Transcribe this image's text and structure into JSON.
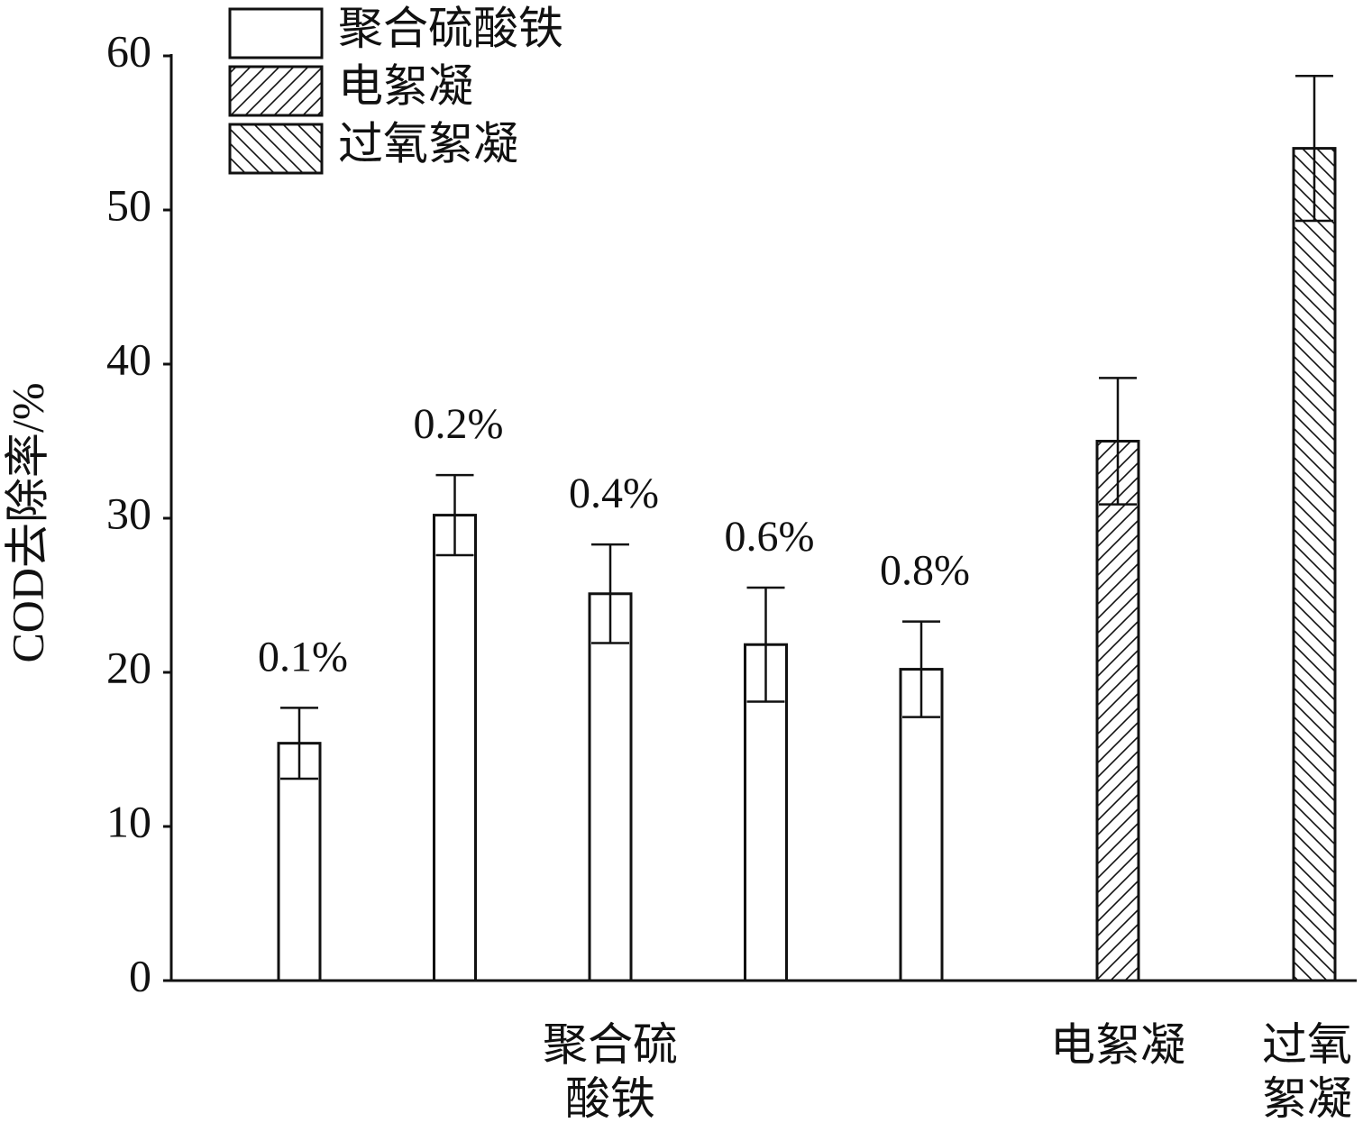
{
  "chart_data": {
    "type": "bar",
    "y_label": "COD去除率/%",
    "categories": [
      "0.1%",
      "0.2%",
      "0.4%",
      "0.6%",
      "0.8%",
      null,
      null
    ],
    "series": [
      {
        "name": "聚合硫酸铁",
        "color": "#ffffff",
        "hatch": null,
        "values": [
          15.4,
          30.2,
          25.1,
          21.8,
          20.2,
          null,
          null
        ],
        "errors": [
          2.3,
          2.6,
          3.2,
          3.7,
          3.1,
          null,
          null
        ]
      },
      {
        "name": "电絮凝",
        "color": "#ffffff",
        "hatch": "/",
        "values": [
          null,
          null,
          null,
          null,
          null,
          35.0,
          null
        ],
        "errors": [
          null,
          null,
          null,
          null,
          null,
          4.1,
          null
        ]
      },
      {
        "name": "过氧絮凝",
        "color": "#ffffff",
        "hatch": "\\",
        "values": [
          null,
          null,
          null,
          null,
          null,
          null,
          54.0
        ],
        "errors": [
          null,
          null,
          null,
          null,
          null,
          null,
          4.7
        ]
      }
    ],
    "ylim": [
      0,
      60
    ],
    "yticks": [
      0,
      10,
      20,
      30,
      40,
      50,
      60
    ],
    "grid": false,
    "legend": "top-left"
  }
}
